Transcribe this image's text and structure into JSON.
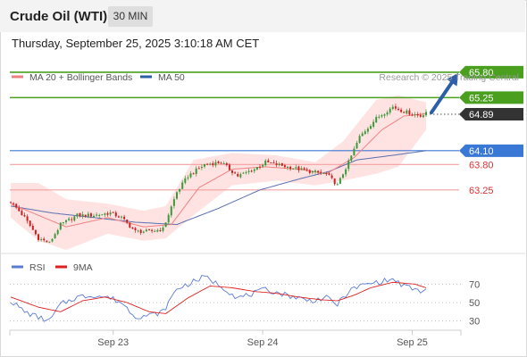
{
  "header": {
    "title": "Crude Oil (WTI)",
    "timeframe": "30 MIN",
    "datetime": "Thursday, September 25, 2025 3:10:18 AM CET"
  },
  "colors": {
    "ma20": "#f08080",
    "bands": "#ffd9d9",
    "ma50": "#5a6fae",
    "resistance": "#4aa01e",
    "pivot": "#3a78d6",
    "support": "#f4a0a0",
    "support_text": "#e03030",
    "up_candle": "#3a9a3a",
    "down_candle": "#cc2020",
    "rsi": "#5b7bd6",
    "rsi_ma": "#dd2020",
    "current": "#333333",
    "arrow": "#2d5ea8"
  },
  "chart_data": [
    {
      "type": "candlestick",
      "name": "price",
      "legend": [
        {
          "label": "MA 20 + Bollinger Bands",
          "color": "#f08080"
        },
        {
          "label": "MA 50",
          "color": "#2d5ea8"
        }
      ],
      "watermark": "Research © 2025 Trading Central",
      "ylim": [
        61.95,
        66.05
      ],
      "x_ticks": [
        {
          "i": 37,
          "label": "Sep 23"
        },
        {
          "i": 91,
          "label": "Sep 24"
        },
        {
          "i": 145,
          "label": "Sep 25"
        }
      ],
      "levels": [
        {
          "value": 65.8,
          "label": "65.80",
          "kind": "resistance"
        },
        {
          "value": 65.25,
          "label": "65.25",
          "kind": "resistance"
        },
        {
          "value": 64.1,
          "label": "64.10",
          "kind": "pivot"
        },
        {
          "value": 63.8,
          "label": "63.80",
          "kind": "support"
        },
        {
          "value": 63.25,
          "label": "63.25",
          "kind": "support"
        }
      ],
      "current_price": {
        "value": 64.89,
        "label": "64.89"
      },
      "close_anchors": [
        [
          0,
          63.0
        ],
        [
          5,
          62.65
        ],
        [
          10,
          62.2
        ],
        [
          14,
          62.1
        ],
        [
          18,
          62.5
        ],
        [
          24,
          62.7
        ],
        [
          30,
          62.7
        ],
        [
          36,
          62.75
        ],
        [
          40,
          62.65
        ],
        [
          45,
          62.35
        ],
        [
          50,
          62.35
        ],
        [
          55,
          62.4
        ],
        [
          60,
          63.2
        ],
        [
          64,
          63.55
        ],
        [
          70,
          63.8
        ],
        [
          76,
          63.85
        ],
        [
          82,
          63.55
        ],
        [
          88,
          63.7
        ],
        [
          92,
          63.85
        ],
        [
          100,
          63.75
        ],
        [
          108,
          63.65
        ],
        [
          114,
          63.6
        ],
        [
          118,
          63.35
        ],
        [
          122,
          63.85
        ],
        [
          126,
          64.4
        ],
        [
          132,
          64.8
        ],
        [
          138,
          65.05
        ],
        [
          142,
          64.95
        ],
        [
          148,
          64.85
        ],
        [
          150,
          64.95
        ]
      ],
      "ma20_anchors": [
        [
          0,
          62.95
        ],
        [
          10,
          62.7
        ],
        [
          20,
          62.45
        ],
        [
          35,
          62.65
        ],
        [
          48,
          62.45
        ],
        [
          58,
          62.5
        ],
        [
          68,
          63.3
        ],
        [
          80,
          63.7
        ],
        [
          92,
          63.75
        ],
        [
          104,
          63.7
        ],
        [
          114,
          63.6
        ],
        [
          124,
          63.95
        ],
        [
          134,
          64.55
        ],
        [
          142,
          64.85
        ],
        [
          150,
          64.9
        ]
      ],
      "bands_upper": [
        [
          0,
          63.4
        ],
        [
          10,
          63.4
        ],
        [
          20,
          63.05
        ],
        [
          35,
          62.95
        ],
        [
          48,
          62.8
        ],
        [
          56,
          62.9
        ],
        [
          66,
          63.9
        ],
        [
          80,
          64.05
        ],
        [
          96,
          64.0
        ],
        [
          110,
          63.85
        ],
        [
          120,
          64.3
        ],
        [
          132,
          65.2
        ],
        [
          140,
          65.3
        ],
        [
          150,
          65.15
        ]
      ],
      "bands_lower": [
        [
          0,
          62.65
        ],
        [
          10,
          62.15
        ],
        [
          20,
          61.95
        ],
        [
          35,
          62.3
        ],
        [
          48,
          62.15
        ],
        [
          56,
          62.2
        ],
        [
          66,
          62.7
        ],
        [
          80,
          63.35
        ],
        [
          96,
          63.45
        ],
        [
          110,
          63.35
        ],
        [
          120,
          63.45
        ],
        [
          132,
          63.6
        ],
        [
          140,
          63.75
        ],
        [
          150,
          64.55
        ]
      ],
      "ma50_anchors": [
        [
          0,
          62.9
        ],
        [
          15,
          62.75
        ],
        [
          30,
          62.65
        ],
        [
          45,
          62.55
        ],
        [
          60,
          62.5
        ],
        [
          75,
          62.85
        ],
        [
          90,
          63.25
        ],
        [
          105,
          63.5
        ],
        [
          115,
          63.65
        ],
        [
          125,
          63.9
        ],
        [
          138,
          64.0
        ],
        [
          150,
          64.1
        ]
      ]
    },
    {
      "type": "line",
      "name": "oscillator",
      "legend": [
        {
          "label": "RSI",
          "color": "#5b7bd6"
        },
        {
          "label": "9MA",
          "color": "#dd2020"
        }
      ],
      "ylim": [
        20,
        80
      ],
      "y_ticks": [
        {
          "value": 70,
          "label": "70"
        },
        {
          "value": 50,
          "label": "50"
        },
        {
          "value": 30,
          "label": "30"
        }
      ],
      "rsi_anchors": [
        [
          0,
          52
        ],
        [
          5,
          40
        ],
        [
          10,
          34
        ],
        [
          14,
          30
        ],
        [
          18,
          48
        ],
        [
          24,
          56
        ],
        [
          30,
          58
        ],
        [
          36,
          55
        ],
        [
          40,
          50
        ],
        [
          45,
          35
        ],
        [
          50,
          36
        ],
        [
          55,
          40
        ],
        [
          60,
          65
        ],
        [
          64,
          70
        ],
        [
          70,
          78
        ],
        [
          76,
          68
        ],
        [
          82,
          55
        ],
        [
          88,
          60
        ],
        [
          92,
          64
        ],
        [
          100,
          58
        ],
        [
          108,
          52
        ],
        [
          114,
          55
        ],
        [
          118,
          48
        ],
        [
          122,
          62
        ],
        [
          126,
          68
        ],
        [
          132,
          72
        ],
        [
          138,
          75
        ],
        [
          142,
          68
        ],
        [
          148,
          62
        ],
        [
          150,
          64
        ]
      ],
      "ma_anchors": [
        [
          0,
          56
        ],
        [
          10,
          45
        ],
        [
          18,
          40
        ],
        [
          26,
          52
        ],
        [
          34,
          56
        ],
        [
          42,
          50
        ],
        [
          50,
          40
        ],
        [
          56,
          38
        ],
        [
          64,
          55
        ],
        [
          72,
          68
        ],
        [
          80,
          66
        ],
        [
          88,
          62
        ],
        [
          96,
          60
        ],
        [
          104,
          56
        ],
        [
          112,
          53
        ],
        [
          118,
          52
        ],
        [
          124,
          58
        ],
        [
          130,
          66
        ],
        [
          138,
          72
        ],
        [
          146,
          70
        ],
        [
          150,
          66
        ]
      ]
    }
  ]
}
